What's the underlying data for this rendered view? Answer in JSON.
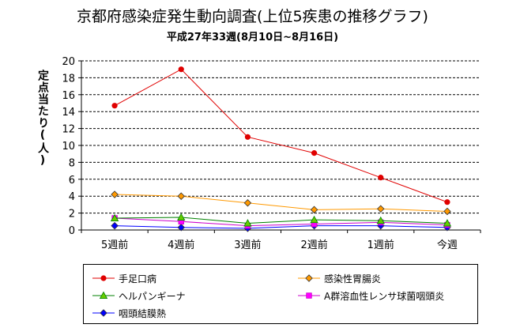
{
  "chart_data": {
    "type": "line",
    "title": "京都府感染症発生動向調査(上位5疾患の推移グラフ)",
    "subtitle": "平成27年33週(8月10日~8月16日)",
    "xlabel": "",
    "ylabel": "定点当たり(人)",
    "ylim": [
      0,
      20
    ],
    "yticks": [
      0,
      2,
      4,
      6,
      8,
      10,
      12,
      14,
      16,
      18,
      20
    ],
    "grid": true,
    "legend_position": "bottom",
    "categories": [
      "5週前",
      "4週前",
      "3週前",
      "2週前",
      "1週前",
      "今週"
    ],
    "series": [
      {
        "name": "手足口病",
        "values": [
          14.7,
          19.0,
          11.0,
          9.1,
          6.2,
          3.3
        ],
        "color": "#e00000",
        "marker": "circle",
        "marker_fill": "#e00000"
      },
      {
        "name": "感染性胃腸炎",
        "values": [
          4.2,
          4.0,
          3.2,
          2.4,
          2.5,
          2.2
        ],
        "color": "#ff9900",
        "marker": "diamond",
        "marker_fill": "#ff9900"
      },
      {
        "name": "ヘルパンギーナ",
        "values": [
          1.4,
          1.5,
          0.8,
          1.2,
          1.1,
          0.8
        ],
        "color": "#008000",
        "marker": "triangle",
        "marker_fill": "#66cc00"
      },
      {
        "name": "A群溶血性レンサ球菌咽頭炎",
        "values": [
          1.4,
          1.0,
          0.5,
          0.7,
          0.9,
          0.6
        ],
        "color": "#cc00cc",
        "marker": "square",
        "marker_fill": "#ff00ff"
      },
      {
        "name": "咽頭結膜熱",
        "values": [
          0.5,
          0.3,
          0.2,
          0.5,
          0.5,
          0.3
        ],
        "color": "#0000ff",
        "marker": "diamond",
        "marker_fill": "#0000ff"
      }
    ]
  }
}
